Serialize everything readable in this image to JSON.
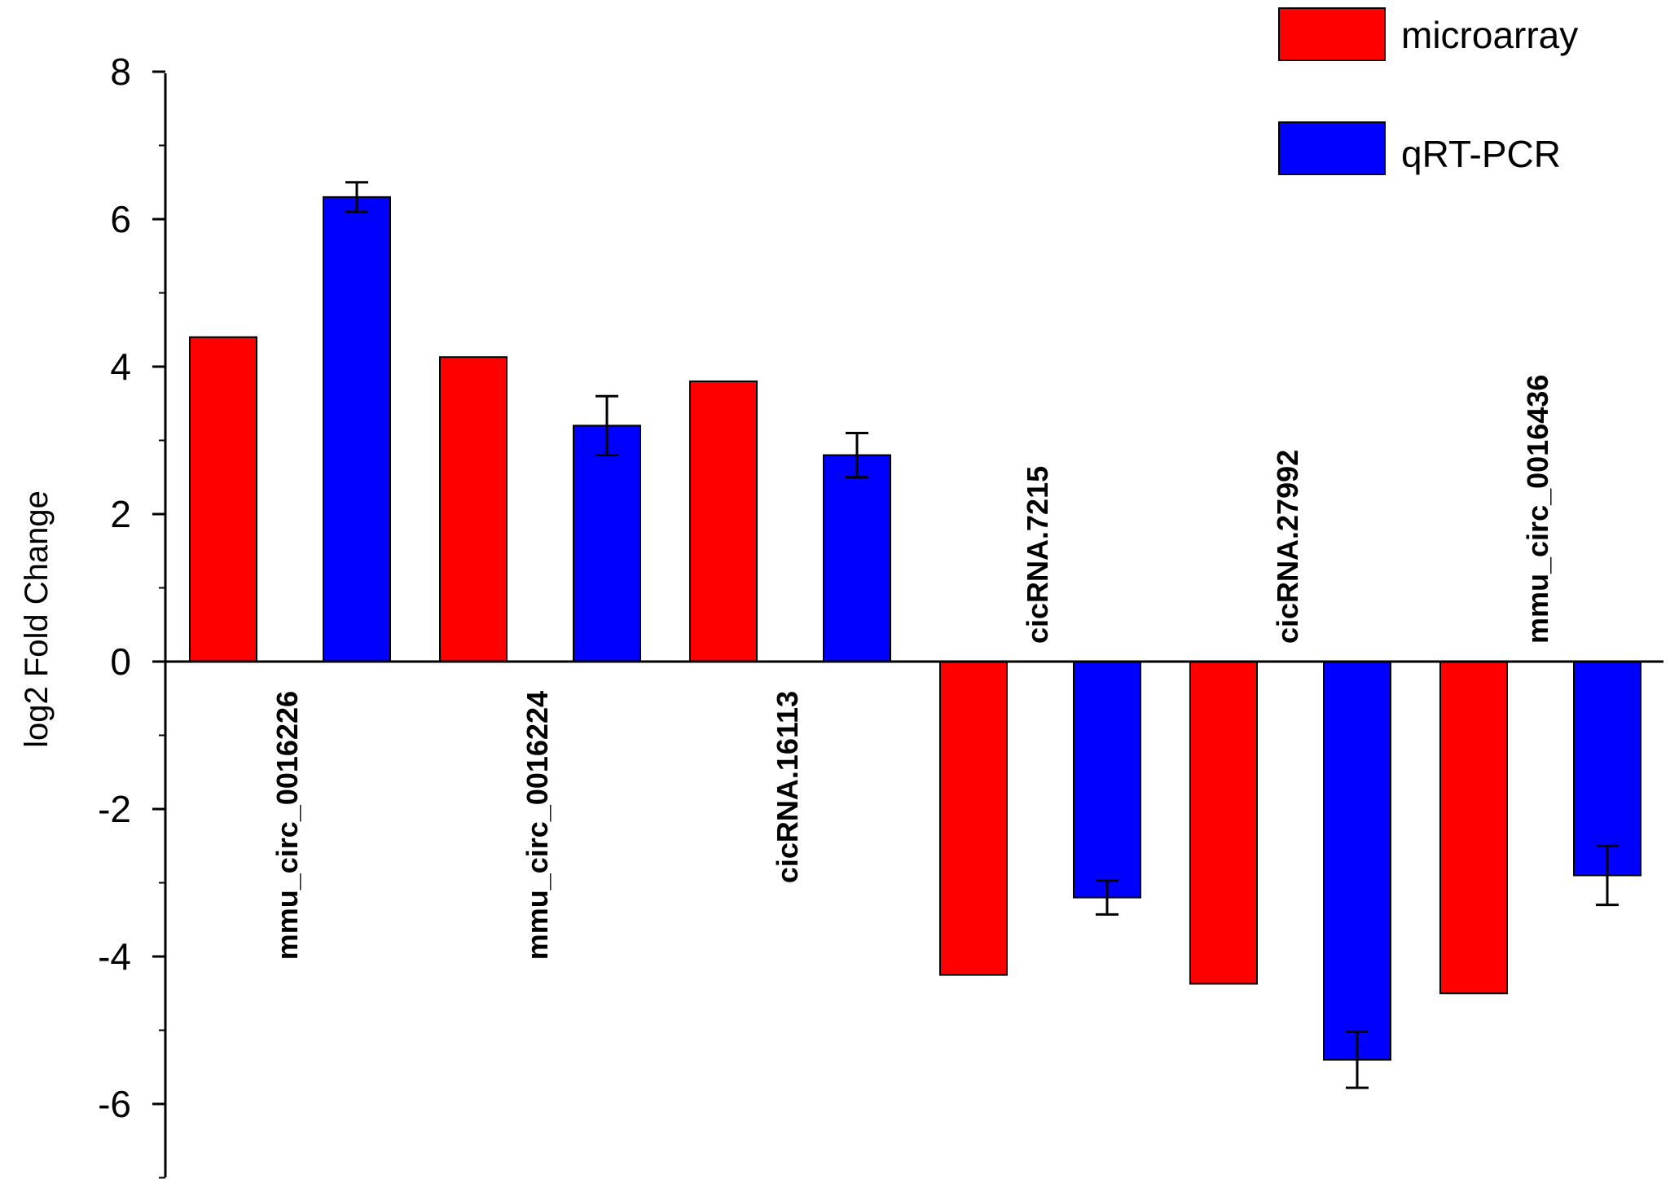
{
  "chart_data": {
    "type": "bar",
    "title": "",
    "xlabel": "",
    "ylabel": "log2 Fold Change",
    "ylim": [
      -7,
      8
    ],
    "yticks": [
      8,
      6,
      4,
      2,
      0,
      -2,
      -4,
      -6
    ],
    "ytick_labels": [
      "8",
      "6",
      "4",
      "2",
      "0",
      "-2",
      "-4",
      "-6"
    ],
    "grid": false,
    "legend_position": "top-right",
    "categories": [
      "mmu_circ_0016226",
      "mmu_circ_0016224",
      "cicRNA.16113",
      "cicRNA.7215",
      "cicRNA.27992",
      "mmu_circ_0016436"
    ],
    "series": [
      {
        "name": "microarray",
        "color": "#ff0000",
        "values": [
          4.4,
          4.13,
          3.8,
          -4.25,
          -4.37,
          -4.5
        ],
        "errors": [
          null,
          null,
          null,
          null,
          null,
          null
        ]
      },
      {
        "name": "qRT-PCR",
        "color": "#0000ff",
        "values": [
          6.3,
          3.2,
          2.8,
          -3.2,
          -5.4,
          -2.9
        ],
        "errors": [
          0.2,
          0.4,
          0.3,
          0.23,
          0.38,
          0.4
        ]
      }
    ]
  }
}
